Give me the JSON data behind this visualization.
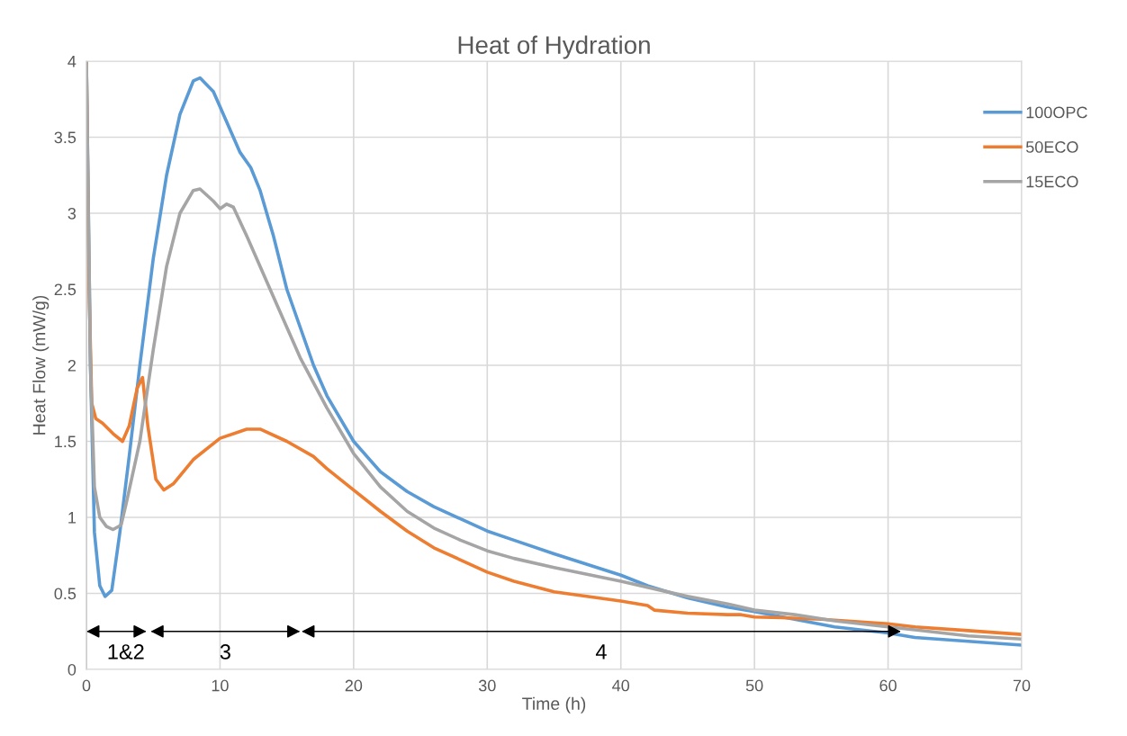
{
  "chart_data": {
    "type": "line",
    "title": "Heat of Hydration",
    "xlabel": "Time (h)",
    "ylabel": "Heat Flow (mW/g)",
    "xlim": [
      0,
      70
    ],
    "xticks": [
      0,
      10,
      20,
      30,
      40,
      50,
      60,
      70
    ],
    "ylim": [
      0,
      4
    ],
    "yticks": [
      0,
      0.5,
      1,
      1.5,
      2,
      2.5,
      3,
      3.5,
      4
    ],
    "grid": true,
    "legend": "right",
    "marker": "none",
    "line_style": "solid",
    "series": [
      {
        "name": "100OPC",
        "color": "#5b9bd5",
        "x": [
          0,
          0.3,
          0.6,
          1.0,
          1.4,
          1.9,
          2.5,
          3.2,
          4,
          5,
          6,
          7,
          8,
          8.5,
          9.5,
          10.5,
          11.5,
          12.3,
          13,
          14,
          15,
          16,
          17,
          18,
          20,
          22,
          24,
          26,
          28,
          30,
          32,
          35,
          40,
          42,
          45,
          48,
          50,
          53,
          56,
          60,
          62,
          66,
          70
        ],
        "values": [
          4.0,
          2.0,
          0.9,
          0.55,
          0.48,
          0.52,
          0.9,
          1.4,
          2.0,
          2.7,
          3.25,
          3.65,
          3.87,
          3.89,
          3.8,
          3.6,
          3.4,
          3.3,
          3.15,
          2.85,
          2.5,
          2.25,
          2.0,
          1.8,
          1.5,
          1.3,
          1.17,
          1.07,
          0.99,
          0.91,
          0.85,
          0.76,
          0.62,
          0.55,
          0.47,
          0.41,
          0.38,
          0.33,
          0.28,
          0.24,
          0.21,
          0.185,
          0.16
        ]
      },
      {
        "name": "50ECO",
        "color": "#ed7d31",
        "x": [
          0,
          0.2,
          0.4,
          0.7,
          1.2,
          2,
          2.7,
          3.2,
          3.8,
          4.2,
          4.6,
          5.2,
          5.8,
          6.5,
          8,
          10,
          12,
          13,
          15,
          17,
          18,
          20,
          22,
          24,
          26,
          28,
          30,
          32,
          35,
          40,
          42,
          42.5,
          45,
          48,
          49,
          50,
          52,
          55,
          60,
          62,
          66,
          70
        ],
        "values": [
          4.0,
          2.5,
          1.75,
          1.65,
          1.62,
          1.55,
          1.5,
          1.6,
          1.85,
          1.92,
          1.6,
          1.25,
          1.18,
          1.22,
          1.38,
          1.52,
          1.58,
          1.58,
          1.5,
          1.4,
          1.32,
          1.18,
          1.04,
          0.91,
          0.8,
          0.72,
          0.64,
          0.58,
          0.51,
          0.45,
          0.42,
          0.39,
          0.37,
          0.36,
          0.36,
          0.345,
          0.34,
          0.33,
          0.3,
          0.28,
          0.255,
          0.23
        ]
      },
      {
        "name": "15ECO",
        "color": "#a5a5a5",
        "x": [
          0,
          0.3,
          0.6,
          1,
          1.5,
          2,
          2.6,
          3,
          4,
          5,
          6,
          7,
          8,
          8.5,
          9.5,
          10,
          10.5,
          11,
          12,
          14,
          16,
          18,
          20,
          22,
          24,
          26,
          28,
          30,
          32,
          35,
          40,
          43,
          45,
          48,
          50,
          53,
          56,
          60,
          62,
          66,
          70
        ],
        "values": [
          4.0,
          2.0,
          1.2,
          1.0,
          0.94,
          0.92,
          0.95,
          1.1,
          1.5,
          2.1,
          2.65,
          3.0,
          3.15,
          3.16,
          3.08,
          3.03,
          3.06,
          3.04,
          2.85,
          2.45,
          2.05,
          1.72,
          1.42,
          1.2,
          1.04,
          0.93,
          0.85,
          0.78,
          0.73,
          0.67,
          0.58,
          0.52,
          0.48,
          0.43,
          0.39,
          0.36,
          0.32,
          0.28,
          0.26,
          0.22,
          0.2
        ]
      }
    ],
    "annotations": [
      "1&2",
      "3",
      "4"
    ]
  }
}
